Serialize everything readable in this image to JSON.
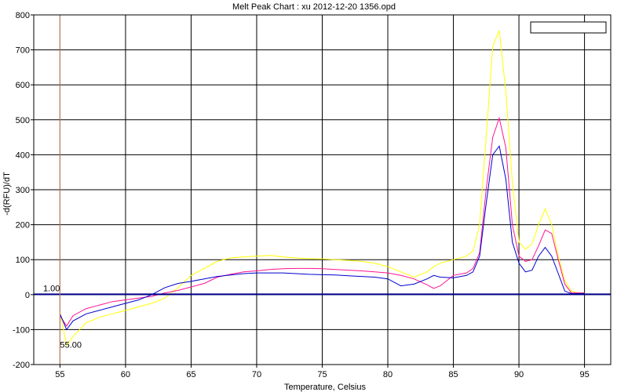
{
  "chart_data": {
    "type": "line",
    "title": "Melt Peak Chart : xu 2012-12-20 1356.opd",
    "xlabel": "Temperature, Celsius",
    "ylabel": "-d(RFU)/dT",
    "xlim": [
      53,
      97
    ],
    "ylim": [
      -200,
      800
    ],
    "xticks": [
      55,
      60,
      65,
      70,
      75,
      80,
      85,
      90,
      95
    ],
    "yticks": [
      -200,
      -100,
      0,
      100,
      200,
      300,
      400,
      500,
      600,
      700,
      800
    ],
    "grid": true,
    "legend": "top-right",
    "threshold": {
      "value": 1.0,
      "label": "1.00",
      "color": "#00008b"
    },
    "marker": {
      "value": 55.0,
      "label": "55.00",
      "color": "#cd7f5a"
    },
    "series": [
      {
        "color": "#ffff00",
        "x": [
          55,
          55.5,
          56,
          57,
          58,
          59,
          60,
          61,
          62,
          63,
          64,
          65,
          66,
          67,
          68,
          69,
          70,
          71,
          72,
          73,
          74,
          75,
          76,
          77,
          78,
          79,
          80,
          81,
          82,
          83,
          83.5,
          84,
          85,
          86,
          86.5,
          87,
          87.5,
          88,
          88.5,
          89,
          89.5,
          90,
          90.5,
          91,
          91.5,
          92,
          92.5,
          93,
          93.5,
          94,
          94.5,
          95
        ],
        "y": [
          -50,
          -145,
          -120,
          -80,
          -65,
          -55,
          -45,
          -35,
          -25,
          -10,
          20,
          55,
          75,
          95,
          105,
          108,
          110,
          112,
          108,
          105,
          103,
          102,
          100,
          98,
          95,
          90,
          80,
          65,
          50,
          65,
          80,
          90,
          100,
          110,
          125,
          200,
          450,
          710,
          755,
          580,
          320,
          150,
          130,
          145,
          200,
          245,
          200,
          110,
          40,
          10,
          5,
          5
        ]
      },
      {
        "color": "#ff1493",
        "x": [
          55,
          55.5,
          56,
          57,
          58,
          59,
          60,
          61,
          62,
          63,
          64,
          65,
          66,
          67,
          68,
          69,
          70,
          71,
          72,
          73,
          74,
          75,
          76,
          77,
          78,
          79,
          80,
          81,
          82,
          83,
          83.5,
          84,
          85,
          86,
          86.5,
          87,
          87.5,
          88,
          88.5,
          89,
          89.5,
          90,
          90.5,
          91,
          91.5,
          92,
          92.5,
          93,
          93.5,
          94,
          94.5,
          95
        ],
        "y": [
          -60,
          -90,
          -60,
          -40,
          -30,
          -20,
          -15,
          -10,
          -5,
          5,
          12,
          22,
          32,
          50,
          58,
          65,
          68,
          72,
          74,
          75,
          75,
          74,
          72,
          70,
          68,
          65,
          62,
          55,
          45,
          28,
          18,
          25,
          55,
          62,
          75,
          120,
          300,
          450,
          505,
          420,
          200,
          110,
          95,
          100,
          140,
          185,
          175,
          100,
          30,
          5,
          5,
          5
        ]
      },
      {
        "color": "#0000cd",
        "x": [
          55,
          55.5,
          56,
          57,
          58,
          59,
          60,
          61,
          62,
          63,
          64,
          65,
          66,
          67,
          68,
          69,
          70,
          71,
          72,
          73,
          74,
          75,
          76,
          77,
          78,
          79,
          80,
          81,
          82,
          83,
          83.5,
          84,
          85,
          86,
          86.5,
          87,
          87.5,
          88,
          88.5,
          89,
          89.5,
          90,
          90.5,
          91,
          91.5,
          92,
          92.5,
          93,
          93.5,
          94,
          94.5,
          95
        ],
        "y": [
          -55,
          -100,
          -75,
          -55,
          -45,
          -35,
          -25,
          -15,
          0,
          20,
          32,
          38,
          45,
          52,
          56,
          60,
          62,
          62,
          62,
          60,
          58,
          57,
          56,
          54,
          52,
          50,
          45,
          25,
          30,
          45,
          55,
          50,
          48,
          55,
          65,
          110,
          260,
          400,
          425,
          330,
          150,
          90,
          65,
          70,
          110,
          135,
          110,
          60,
          10,
          3,
          3,
          3
        ]
      }
    ]
  }
}
